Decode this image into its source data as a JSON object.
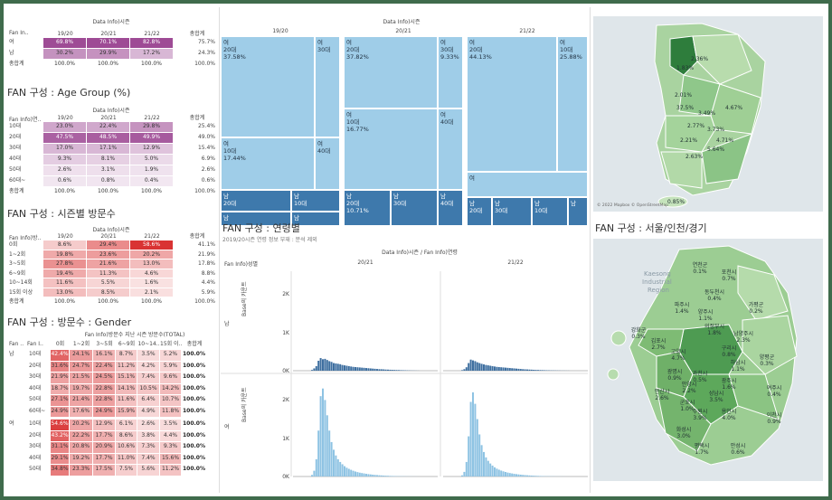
{
  "gender_table": {
    "header_title": "Data Info)시즌",
    "row_header": "Fan In.. ",
    "cols": [
      "19/20",
      "20/21",
      "21/22"
    ],
    "total_label": "총합계",
    "rows": [
      {
        "label": "여",
        "vals": [
          "69.8%",
          "70.1%",
          "82.8%"
        ],
        "total": "75.7%"
      },
      {
        "label": "남",
        "vals": [
          "30.2%",
          "29.9%",
          "17.2%"
        ],
        "total": "24.3%"
      },
      {
        "label": "총합계",
        "vals": [
          "100.0%",
          "100.0%",
          "100.0%"
        ],
        "total": "100.0%"
      }
    ]
  },
  "age_table": {
    "title": "FAN 구성 : Age Group (%)",
    "header_title": "Data Info)시즌",
    "row_header": "Fan Info)연..",
    "cols": [
      "19/20",
      "20/21",
      "21/22"
    ],
    "total_label": "총합계",
    "rows": [
      {
        "label": "10대",
        "vals": [
          "23.0%",
          "22.4%",
          "29.8%"
        ],
        "total": "25.4%"
      },
      {
        "label": "20대",
        "vals": [
          "47.5%",
          "48.5%",
          "49.9%"
        ],
        "total": "49.0%"
      },
      {
        "label": "30대",
        "vals": [
          "17.0%",
          "17.1%",
          "12.9%"
        ],
        "total": "15.4%"
      },
      {
        "label": "40대",
        "vals": [
          "9.3%",
          "8.1%",
          "5.0%"
        ],
        "total": "6.9%"
      },
      {
        "label": "50대",
        "vals": [
          "2.6%",
          "3.1%",
          "1.9%"
        ],
        "total": "2.6%"
      },
      {
        "label": "60대~",
        "vals": [
          "0.6%",
          "0.8%",
          "0.4%"
        ],
        "total": "0.6%"
      },
      {
        "label": "총합계",
        "vals": [
          "100.0%",
          "100.0%",
          "100.0%"
        ],
        "total": "100.0%"
      }
    ]
  },
  "visit_table": {
    "title": "FAN 구성 : 시즌별 방문수",
    "header_title": "Data Info)시즌",
    "row_header": "Fan Info)방..",
    "cols": [
      "19/20",
      "20/21",
      "21/22"
    ],
    "total_label": "총합계",
    "rows": [
      {
        "label": "0회",
        "vals": [
          "8.6%",
          "29.4%",
          "58.6%"
        ],
        "total": "41.1%"
      },
      {
        "label": "1~2회",
        "vals": [
          "19.8%",
          "23.6%",
          "20.2%"
        ],
        "total": "21.9%"
      },
      {
        "label": "3~5회",
        "vals": [
          "27.8%",
          "21.6%",
          "13.0%"
        ],
        "total": "17.8%"
      },
      {
        "label": "6~9회",
        "vals": [
          "19.4%",
          "11.3%",
          "4.6%"
        ],
        "total": "8.8%"
      },
      {
        "label": "10~14회",
        "vals": [
          "11.6%",
          "5.5%",
          "1.6%"
        ],
        "total": "4.4%"
      },
      {
        "label": "15회 이상",
        "vals": [
          "13.0%",
          "8.5%",
          "2.1%"
        ],
        "total": "5.9%"
      },
      {
        "label": "총합계",
        "vals": [
          "100.0%",
          "100.0%",
          "100.0%"
        ],
        "total": "100.0%"
      }
    ]
  },
  "gv_table": {
    "title": "FAN 구성 : 방문수 : Gender",
    "header_title": "Fan Info)방문수 지난 시즌 방문수(TOTAL)",
    "row_headers": [
      "Fan ..",
      "Fan I.."
    ],
    "cols": [
      "0회",
      "1~2회",
      "3~5회",
      "6~9회",
      "10~14..",
      "15회 이..",
      "총합계"
    ],
    "groups": [
      {
        "label": "남",
        "rows": [
          {
            "label": "10대",
            "vals": [
              "42.4%",
              "24.1%",
              "16.1%",
              "8.7%",
              "3.5%",
              "5.2%",
              "100.0%"
            ]
          },
          {
            "label": "20대",
            "vals": [
              "31.6%",
              "24.7%",
              "22.4%",
              "11.2%",
              "4.2%",
              "5.9%",
              "100.0%"
            ]
          },
          {
            "label": "30대",
            "vals": [
              "21.9%",
              "21.5%",
              "24.5%",
              "15.1%",
              "7.4%",
              "9.6%",
              "100.0%"
            ]
          },
          {
            "label": "40대",
            "vals": [
              "18.7%",
              "19.7%",
              "22.8%",
              "14.1%",
              "10.5%",
              "14.2%",
              "100.0%"
            ]
          },
          {
            "label": "50대",
            "vals": [
              "27.1%",
              "21.4%",
              "22.8%",
              "11.6%",
              "6.4%",
              "10.7%",
              "100.0%"
            ]
          },
          {
            "label": "60대~",
            "vals": [
              "24.9%",
              "17.6%",
              "24.9%",
              "15.9%",
              "4.9%",
              "11.8%",
              "100.0%"
            ]
          }
        ]
      },
      {
        "label": "여",
        "rows": [
          {
            "label": "10대",
            "vals": [
              "54.6%",
              "20.2%",
              "12.9%",
              "6.1%",
              "2.6%",
              "3.5%",
              "100.0%"
            ]
          },
          {
            "label": "20대",
            "vals": [
              "43.2%",
              "22.2%",
              "17.7%",
              "8.6%",
              "3.8%",
              "4.4%",
              "100.0%"
            ]
          },
          {
            "label": "30대",
            "vals": [
              "31.1%",
              "20.8%",
              "20.9%",
              "10.6%",
              "7.3%",
              "9.3%",
              "100.0%"
            ]
          },
          {
            "label": "40대",
            "vals": [
              "29.1%",
              "19.2%",
              "17.7%",
              "11.0%",
              "7.4%",
              "15.6%",
              "100.0%"
            ]
          },
          {
            "label": "50대",
            "vals": [
              "34.8%",
              "23.3%",
              "17.5%",
              "7.5%",
              "5.6%",
              "11.2%",
              "100.0%"
            ]
          }
        ]
      }
    ]
  },
  "treemap": {
    "header_title": "Data Info)시즌",
    "seasons": [
      "19/20",
      "20/21",
      "21/22"
    ],
    "panels": [
      {
        "cells": [
          {
            "lines": [
              "여",
              "20대",
              "37.58%"
            ],
            "dark": false
          },
          {
            "lines": [
              "여",
              "30대"
            ],
            "dark": false
          },
          {
            "lines": [
              "여",
              "10대",
              "17.44%"
            ],
            "dark": false
          },
          {
            "lines": [
              "여",
              "40대"
            ],
            "dark": false
          },
          {
            "lines": [
              "남",
              "20대"
            ],
            "dark": true
          },
          {
            "lines": [
              "남",
              "10대"
            ],
            "dark": true
          },
          {
            "lines": [
              "남"
            ],
            "dark": true
          },
          {
            "lines": [
              "남"
            ],
            "dark": true
          }
        ]
      },
      {
        "cells": [
          {
            "lines": [
              "여",
              "20대",
              "37.82%"
            ],
            "dark": false
          },
          {
            "lines": [
              "여",
              "30대",
              "9.33%"
            ],
            "dark": false
          },
          {
            "lines": [
              "여",
              "10대",
              "16.77%"
            ],
            "dark": false
          },
          {
            "lines": [
              "여",
              "40대"
            ],
            "dark": false
          },
          {
            "lines": [
              "남",
              "20대",
              "10.71%"
            ],
            "dark": true
          },
          {
            "lines": [
              "남",
              "30대"
            ],
            "dark": true
          },
          {
            "lines": [
              "남",
              "40대"
            ],
            "dark": true
          },
          {
            "lines": [
              "남"
            ],
            "dark": true
          }
        ]
      },
      {
        "cells": [
          {
            "lines": [
              "여",
              "20대",
              "44.13%"
            ],
            "dark": false
          },
          {
            "lines": [
              "여",
              "10대",
              "25.88%"
            ],
            "dark": false
          },
          {
            "lines": [
              "여"
            ],
            "dark": false
          },
          {
            "lines": [
              "남",
              "20대"
            ],
            "dark": true
          },
          {
            "lines": [
              "남",
              "30대"
            ],
            "dark": true
          },
          {
            "lines": [
              "남",
              "10대"
            ],
            "dark": true
          },
          {
            "lines": [
              "남"
            ],
            "dark": true
          }
        ]
      }
    ]
  },
  "age_hist": {
    "title": "FAN 구성 : 연령별",
    "subtitle": "2019/20시즌 연령 정보 부재 : 분석 제외",
    "header_title": "Data Info)시즌 / Fan Info)연령",
    "row_header": "Fan Info)성별",
    "y_axis_label": "Base의 카운트",
    "y_ticks": [
      "2K",
      "1K",
      "0K"
    ],
    "seasons": [
      "20/21",
      "21/22"
    ],
    "rows": [
      "남",
      "여"
    ]
  },
  "chart_data": {
    "type": "bar",
    "title": "FAN 구성 : 연령별",
    "subtitle": "2019/20시즌 연령 정보 부재 : 분석 제외",
    "ylabel": "Base의 카운트",
    "ylim": [
      0,
      2600
    ],
    "series": [
      {
        "season": "20/21",
        "gender": "남",
        "values": [
          20,
          60,
          120,
          260,
          330,
          300,
          310,
          280,
          250,
          230,
          200,
          190,
          180,
          170,
          150,
          140,
          130,
          120,
          110,
          100,
          95,
          90,
          85,
          80,
          75,
          70,
          65,
          60,
          55,
          50,
          45,
          40,
          38,
          35,
          30,
          28,
          25,
          22,
          20,
          18,
          16,
          14,
          12,
          10,
          8,
          6,
          5,
          4,
          3,
          2
        ]
      },
      {
        "season": "21/22",
        "gender": "남",
        "values": [
          15,
          40,
          90,
          200,
          290,
          270,
          250,
          220,
          200,
          180,
          165,
          150,
          140,
          130,
          120,
          110,
          100,
          95,
          90,
          85,
          80,
          75,
          70,
          65,
          60,
          55,
          50,
          45,
          40,
          36,
          33,
          30,
          27,
          24,
          21,
          19,
          17,
          15,
          13,
          11,
          9,
          8,
          7,
          6,
          5,
          4,
          3,
          3,
          2,
          2
        ]
      },
      {
        "season": "20/21",
        "gender": "여",
        "values": [
          40,
          150,
          450,
          1200,
          2100,
          2300,
          2000,
          1600,
          1200,
          900,
          700,
          550,
          450,
          380,
          320,
          270,
          230,
          200,
          175,
          150,
          130,
          115,
          100,
          90,
          80,
          70,
          62,
          55,
          48,
          42,
          37,
          32,
          28,
          24,
          21,
          18,
          15,
          13,
          11,
          9,
          8,
          7,
          6,
          5,
          4,
          3,
          3,
          2,
          2,
          1
        ]
      },
      {
        "season": "21/22",
        "gender": "여",
        "values": [
          30,
          120,
          380,
          1050,
          1950,
          2200,
          1900,
          1500,
          1100,
          820,
          640,
          500,
          410,
          340,
          285,
          240,
          205,
          178,
          155,
          135,
          118,
          103,
          90,
          80,
          70,
          62,
          55,
          48,
          42,
          37,
          32,
          28,
          24,
          21,
          18,
          15,
          13,
          11,
          9,
          8,
          7,
          6,
          5,
          4,
          3,
          3,
          2,
          2,
          1,
          1
        ]
      }
    ]
  },
  "map_korea": {
    "labels": [
      "2.36%",
      "1.83%",
      "2.01%",
      "37.5%",
      "4.67%",
      "3.49%",
      "2.77%",
      "3.73%",
      "4.71%",
      "2.21%",
      "2.63%",
      "5.64%",
      "0.85%"
    ],
    "credit": "© 2022 Mapbox © OpenStreetMap"
  },
  "map_capital": {
    "title": "FAN 구성 : 서울/인천/경기",
    "bg_labels": [
      "Kaesong",
      "Industrial",
      "Region"
    ],
    "regions": [
      {
        "name": "연천군",
        "pct": "0.1%"
      },
      {
        "name": "포천시",
        "pct": "0.7%"
      },
      {
        "name": "동두천시",
        "pct": "0.4%"
      },
      {
        "name": "가평군",
        "pct": "0.2%"
      },
      {
        "name": "파주시",
        "pct": "1.4%"
      },
      {
        "name": "양주시",
        "pct": "1.1%"
      },
      {
        "name": "의정부시",
        "pct": "1.8%"
      },
      {
        "name": "남양주시",
        "pct": "2.3%"
      },
      {
        "name": "강화군",
        "pct": "0.3%"
      },
      {
        "name": "김포시",
        "pct": "2.7%"
      },
      {
        "name": "고양시",
        "pct": "4.7%"
      },
      {
        "name": "양평군",
        "pct": "0.3%"
      },
      {
        "name": "구리시",
        "pct": "0.8%"
      },
      {
        "name": "하남시",
        "pct": "1.1%"
      },
      {
        "name": "광명시",
        "pct": "0.9%"
      },
      {
        "name": "과천시",
        "pct": "0.5%"
      },
      {
        "name": "광주시",
        "pct": "1.6%"
      },
      {
        "name": "안양시",
        "pct": "2.2%"
      },
      {
        "name": "성남시",
        "pct": "3.5%"
      },
      {
        "name": "여주시",
        "pct": "0.4%"
      },
      {
        "name": "안산시",
        "pct": "2.6%"
      },
      {
        "name": "군포시",
        "pct": "1.0%"
      },
      {
        "name": "수원시",
        "pct": "3.9%"
      },
      {
        "name": "용인시",
        "pct": "4.0%"
      },
      {
        "name": "이천시",
        "pct": "0.9%"
      },
      {
        "name": "화성시",
        "pct": "3.0%"
      },
      {
        "name": "평택시",
        "pct": "1.7%"
      },
      {
        "name": "안성시",
        "pct": "0.6%"
      }
    ]
  }
}
